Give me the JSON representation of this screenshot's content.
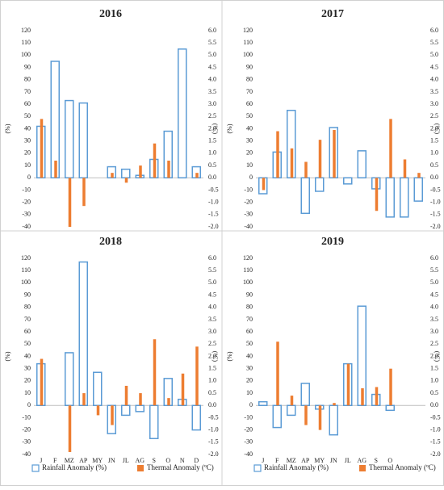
{
  "chart_data": [
    {
      "type": "bar",
      "title": "2016",
      "categories": [
        null,
        null,
        null,
        null,
        null,
        null,
        null,
        null,
        null,
        null,
        null,
        null
      ],
      "series": [
        {
          "color": "#5b9bd5",
          "values": [
            42,
            95,
            63,
            61,
            null,
            9,
            7,
            2,
            15,
            38,
            105,
            9
          ]
        },
        {
          "color": "#ed7d31",
          "axis": "y2",
          "values": [
            2.4,
            0.7,
            -2.0,
            -1.15,
            null,
            0.2,
            -0.2,
            0.5,
            1.4,
            0.7,
            null,
            0.2
          ]
        }
      ],
      "ylabel": "(%)",
      "y2label": "(ºC)",
      "ylim": [
        -40,
        120
      ],
      "yticks": [
        -40,
        -30,
        -20,
        -10,
        0,
        10,
        20,
        30,
        40,
        50,
        60,
        70,
        80,
        90,
        100,
        110,
        120
      ],
      "y2lim": [
        -2,
        6
      ],
      "y2ticks": [
        {
          "value": -2,
          "label": "-2.0"
        },
        {
          "value": -1.5,
          "label": "-1.5"
        },
        {
          "value": -1,
          "label": "-1.0"
        },
        {
          "value": -0.5,
          "label": "-0.5"
        },
        {
          "value": 0,
          "label": "0.0"
        },
        {
          "value": 0.5,
          "label": "0.5"
        },
        {
          "value": 1,
          "label": "1.0"
        },
        {
          "value": 1.5,
          "label": "1.5"
        },
        {
          "value": 2,
          "label": "2.0"
        },
        {
          "value": 2.5,
          "label": "2.5"
        },
        {
          "value": 3,
          "label": "3.0"
        },
        {
          "value": 3.5,
          "label": "3.5"
        },
        {
          "value": 4,
          "label": "4.0"
        },
        {
          "value": 4.5,
          "label": "4.5"
        },
        {
          "value": 5,
          "label": "5.0"
        },
        {
          "value": 5.5,
          "label": "5.5"
        },
        {
          "value": 6,
          "label": "6.0"
        }
      ]
    },
    {
      "type": "bar",
      "title": "2017",
      "categories": [
        null,
        null,
        null,
        null,
        null,
        null,
        null,
        null,
        null,
        null,
        null,
        null
      ],
      "series": [
        {
          "color": "#5b9bd5",
          "values": [
            -13,
            21,
            55,
            -29,
            -11,
            41,
            -5,
            22,
            -9,
            -32,
            -32,
            -19
          ]
        },
        {
          "color": "#ed7d31",
          "axis": "y2",
          "values": [
            -0.5,
            1.9,
            1.2,
            0.65,
            1.55,
            1.95,
            null,
            null,
            -1.35,
            2.4,
            0.75,
            0.2
          ]
        }
      ],
      "ylabel": "(%)",
      "y2label": "(ºC)",
      "ylim": [
        -40,
        120
      ],
      "yticks": [
        -40,
        -30,
        -20,
        -10,
        0,
        10,
        20,
        30,
        40,
        50,
        60,
        70,
        80,
        90,
        100,
        110,
        120
      ],
      "y2lim": [
        -2,
        6
      ],
      "y2ticks": [
        {
          "value": -2,
          "label": "-2.0"
        },
        {
          "value": -1.5,
          "label": "-1.5"
        },
        {
          "value": -1,
          "label": "-1.0"
        },
        {
          "value": -0.5,
          "label": "-0.5"
        },
        {
          "value": 0,
          "label": "0.0"
        },
        {
          "value": 0.5,
          "label": "0.5"
        },
        {
          "value": 1,
          "label": "1.0"
        },
        {
          "value": 1.5,
          "label": "1.5"
        },
        {
          "value": 2,
          "label": "2.0"
        },
        {
          "value": 2.5,
          "label": "2.5"
        },
        {
          "value": 3,
          "label": "3.0"
        },
        {
          "value": 3.5,
          "label": "3.5"
        },
        {
          "value": 4,
          "label": "4.0"
        },
        {
          "value": 4.5,
          "label": "4.5"
        },
        {
          "value": 5,
          "label": "5.0"
        },
        {
          "value": 5.5,
          "label": "5.5"
        },
        {
          "value": 6,
          "label": "6.0"
        }
      ]
    },
    {
      "type": "bar",
      "title": "2018",
      "categories": [
        "J",
        "F",
        "MZ",
        "AP",
        "MY",
        "JN",
        "JL",
        "AG",
        "S",
        "O",
        "N",
        "D"
      ],
      "series": [
        {
          "name": "Rainfall Anomaly (%)",
          "color": "#5b9bd5",
          "values": [
            34,
            null,
            43,
            117,
            27,
            -23,
            -8,
            -5,
            -27,
            22,
            5,
            -20
          ]
        },
        {
          "name": "Thermal Anomaly (ºC)",
          "color": "#ed7d31",
          "axis": "y2",
          "values": [
            1.9,
            null,
            -1.9,
            0.5,
            -0.4,
            -0.8,
            0.8,
            0.5,
            2.7,
            0.3,
            1.3,
            2.4
          ]
        }
      ],
      "ylabel": "(%)",
      "y2label": "(ºC)",
      "ylim": [
        -40,
        120
      ],
      "yticks": [
        -40,
        -30,
        -20,
        -10,
        0,
        10,
        20,
        30,
        40,
        50,
        60,
        70,
        80,
        90,
        100,
        110,
        120
      ],
      "y2lim": [
        -2,
        6
      ],
      "y2ticks": [
        {
          "value": -2,
          "label": "-2.0"
        },
        {
          "value": -1.5,
          "label": "-1.5"
        },
        {
          "value": -1,
          "label": "-1.0"
        },
        {
          "value": -0.5,
          "label": "-0.5"
        },
        {
          "value": 0,
          "label": "0.0"
        },
        {
          "value": 0.5,
          "label": "0.5"
        },
        {
          "value": 1,
          "label": "1.0"
        },
        {
          "value": 1.5,
          "label": "1.5"
        },
        {
          "value": 2,
          "label": "2.0"
        },
        {
          "value": 2.5,
          "label": "2.5"
        },
        {
          "value": 3,
          "label": "3.0"
        },
        {
          "value": 3.5,
          "label": "3.5"
        },
        {
          "value": 4,
          "label": "4.0"
        },
        {
          "value": 4.5,
          "label": "4.5"
        },
        {
          "value": 5,
          "label": "5.0"
        },
        {
          "value": 5.5,
          "label": "5.5"
        },
        {
          "value": 6,
          "label": "6.0"
        }
      ]
    },
    {
      "type": "bar",
      "title": "2019",
      "categories": [
        "J",
        "F",
        "MZ",
        "AP",
        "MY",
        "JN",
        "JL",
        "AG",
        "S",
        "O"
      ],
      "series": [
        {
          "name": "Rainfall Anomaly (%)",
          "color": "#5b9bd5",
          "values": [
            3,
            -18,
            -8,
            18,
            -3,
            -24,
            34,
            81,
            9,
            -4
          ]
        },
        {
          "name": "Thermal Anomaly (ºC)",
          "color": "#ed7d31",
          "axis": "y2",
          "values": [
            null,
            2.6,
            0.4,
            -0.8,
            -1.0,
            0.1,
            1.7,
            0.7,
            0.75,
            1.5
          ]
        }
      ],
      "ylabel": "(%)",
      "y2label": "(ºC)",
      "ylim": [
        -40,
        120
      ],
      "yticks": [
        -40,
        -30,
        -20,
        -10,
        0,
        10,
        20,
        30,
        40,
        50,
        60,
        70,
        80,
        90,
        100,
        110,
        120
      ],
      "y2lim": [
        -2,
        6
      ],
      "y2ticks": [
        {
          "value": -2,
          "label": "-2.0"
        },
        {
          "value": -1.5,
          "label": "-1.5"
        },
        {
          "value": -1,
          "label": "-1.0"
        },
        {
          "value": -0.5,
          "label": "-0.5"
        },
        {
          "value": 0,
          "label": "0.0"
        },
        {
          "value": 0.5,
          "label": "0.5"
        },
        {
          "value": 1,
          "label": "1.0"
        },
        {
          "value": 1.5,
          "label": "1.5"
        },
        {
          "value": 2,
          "label": "2.0"
        },
        {
          "value": 2.5,
          "label": "2.5"
        },
        {
          "value": 3,
          "label": "3.0"
        },
        {
          "value": 3.5,
          "label": "3.5"
        },
        {
          "value": 4,
          "label": "4.0"
        },
        {
          "value": 4.5,
          "label": "4.5"
        },
        {
          "value": 5,
          "label": "5.0"
        },
        {
          "value": 5.5,
          "label": "5.5"
        },
        {
          "value": 6,
          "label": "6.0"
        }
      ]
    }
  ]
}
